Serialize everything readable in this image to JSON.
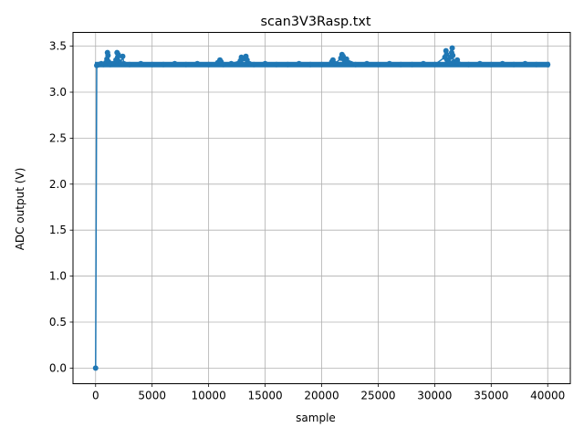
{
  "chart_data": {
    "type": "line",
    "title": "scan3V3Rasp.txt",
    "xlabel": "sample",
    "ylabel": "ADC output (V)",
    "xlim": [
      -2000,
      42000
    ],
    "ylim": [
      -0.17,
      3.65
    ],
    "xticks": [
      0,
      5000,
      10000,
      15000,
      20000,
      25000,
      30000,
      35000,
      40000
    ],
    "yticks": [
      0.0,
      0.5,
      1.0,
      1.5,
      2.0,
      2.5,
      3.0,
      3.5
    ],
    "xtick_labels": [
      "0",
      "5000",
      "10000",
      "15000",
      "20000",
      "25000",
      "30000",
      "35000",
      "40000"
    ],
    "ytick_labels": [
      "0.0",
      "0.5",
      "1.0",
      "1.5",
      "2.0",
      "2.5",
      "3.0",
      "3.5"
    ],
    "grid": true,
    "color": "#1f77b4",
    "marker": "circle",
    "series": [
      {
        "baseline": 3.3,
        "x": [
          0,
          100,
          300,
          500,
          700,
          900,
          1000,
          1050,
          1100,
          1150,
          1300,
          1500,
          1800,
          1900,
          1950,
          2000,
          2100,
          2200,
          2400,
          2500,
          3000,
          4000,
          5000,
          6000,
          7000,
          8000,
          9000,
          10000,
          10800,
          11000,
          11100,
          11300,
          12000,
          12800,
          12900,
          13000,
          13300,
          13400,
          13600,
          14000,
          15000,
          16000,
          17000,
          18000,
          19000,
          20000,
          20900,
          21000,
          21200,
          21700,
          21800,
          21900,
          22000,
          22200,
          22400,
          22600,
          23000,
          24000,
          25000,
          26000,
          27000,
          28000,
          29000,
          30000,
          30900,
          31000,
          31050,
          31100,
          31300,
          31400,
          31500,
          31550,
          31600,
          31700,
          32000,
          32100,
          33000,
          34000,
          35000,
          36000,
          37000,
          38000,
          39000,
          40000
        ],
        "y": [
          0.0,
          3.29,
          3.3,
          3.31,
          3.3,
          3.32,
          3.36,
          3.43,
          3.4,
          3.33,
          3.3,
          3.31,
          3.35,
          3.43,
          3.38,
          3.41,
          3.33,
          3.31,
          3.39,
          3.31,
          3.3,
          3.31,
          3.3,
          3.3,
          3.31,
          3.3,
          3.31,
          3.3,
          3.32,
          3.35,
          3.33,
          3.3,
          3.31,
          3.34,
          3.38,
          3.36,
          3.39,
          3.35,
          3.31,
          3.3,
          3.31,
          3.3,
          3.3,
          3.31,
          3.3,
          3.3,
          3.33,
          3.35,
          3.31,
          3.37,
          3.41,
          3.39,
          3.35,
          3.36,
          3.32,
          3.31,
          3.3,
          3.31,
          3.3,
          3.31,
          3.3,
          3.3,
          3.31,
          3.3,
          3.38,
          3.45,
          3.41,
          3.35,
          3.32,
          3.38,
          3.43,
          3.48,
          3.4,
          3.33,
          3.35,
          3.31,
          3.3,
          3.31,
          3.3,
          3.31,
          3.3,
          3.31,
          3.3,
          3.3
        ]
      }
    ]
  }
}
